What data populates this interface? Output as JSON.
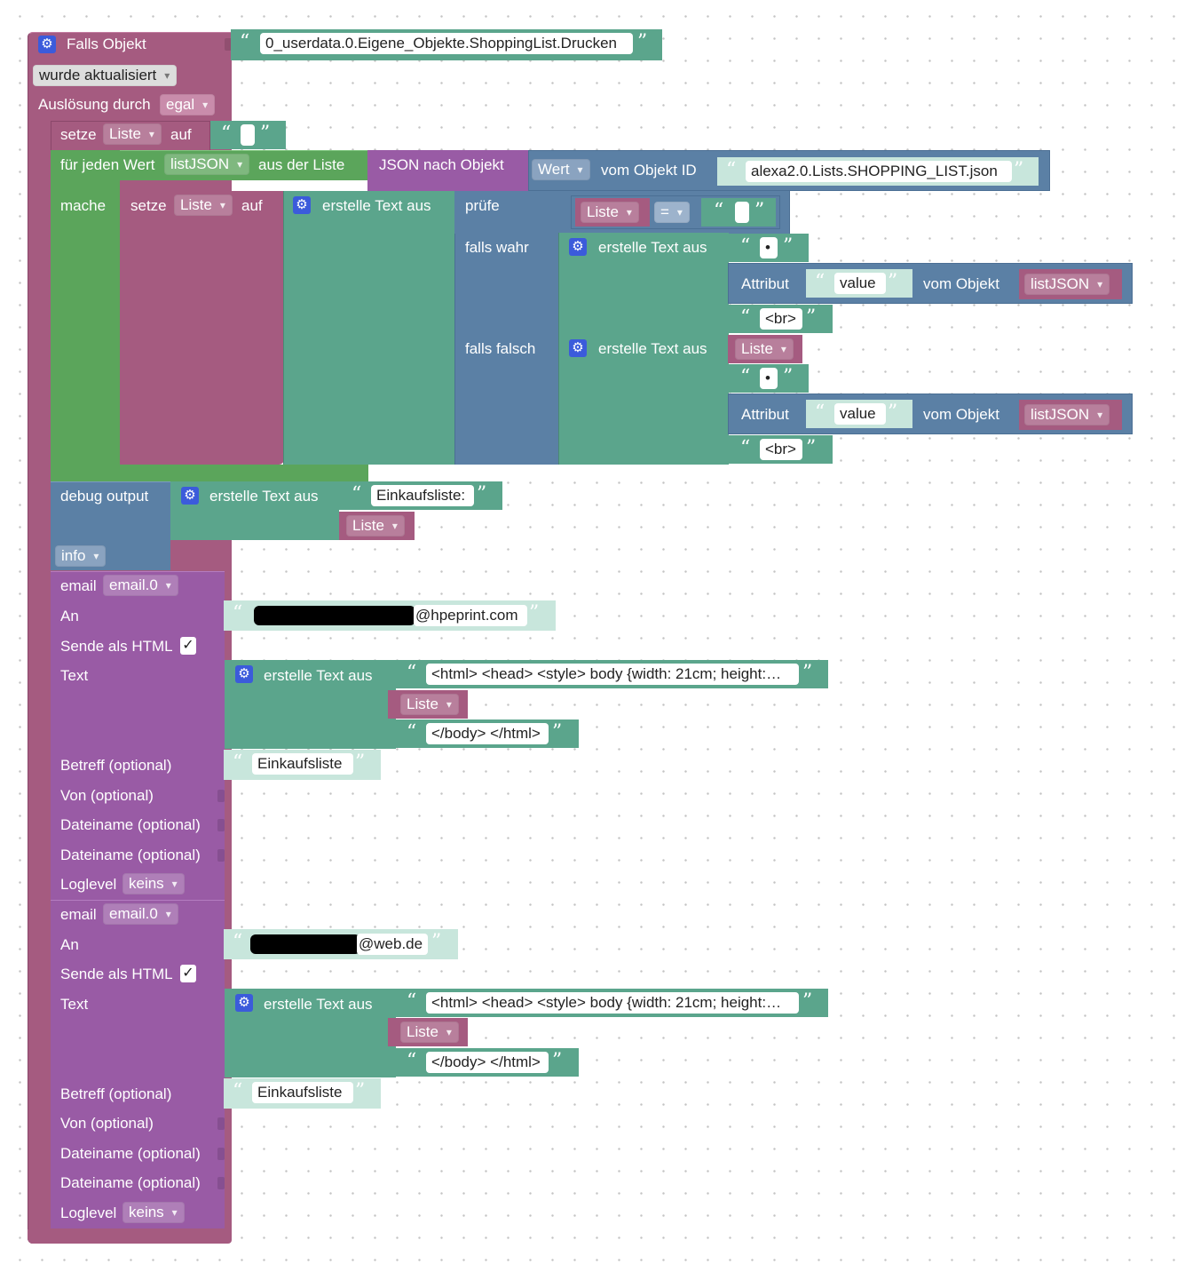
{
  "trigger": {
    "title": "Falls Objekt",
    "object_id": "0_userdata.0.Eigene_Objekte.ShoppingList.Drucken",
    "condition": "wurde aktualisiert",
    "trigger_by_label": "Auslösung durch",
    "trigger_by_value": "egal"
  },
  "common": {
    "setze": "setze",
    "auf": "auf",
    "list_var": "Liste",
    "create_text": "erstelle Text aus",
    "bullet": "•",
    "br": "<br>",
    "attribut": "Attribut",
    "value": "value",
    "vom_objekt": "vom Objekt",
    "listjson": "listJSON"
  },
  "loop": {
    "for_each": "für jeden Wert",
    "var": "listJSON",
    "from_list": "aus der Liste",
    "json_to_obj": "JSON nach Objekt",
    "wert": "Wert",
    "vom_objekt_id": "vom Objekt ID",
    "state_id": "alexa2.0.Lists.SHOPPING_LIST.json",
    "mache": "mache"
  },
  "ternary": {
    "pruefe": "prüfe",
    "op": "=",
    "falls_wahr": "falls wahr",
    "falls_falsch": "falls falsch"
  },
  "debug": {
    "label": "debug output",
    "prefix": "Einkaufsliste:",
    "level": "info"
  },
  "email_labels": {
    "email": "email",
    "instance": "email.0",
    "an": "An",
    "send_html": "Sende als HTML",
    "check": "✓",
    "text": "Text",
    "betreff": "Betreff (optional)",
    "von": "Von (optional)",
    "dateiname": "Dateiname (optional)",
    "loglevel": "Loglevel",
    "loglevel_value": "keins",
    "html_head": "<html> <head> <style> body {width: 21cm; height:…",
    "html_tail": "</body> </html>",
    "subject": "Einkaufsliste"
  },
  "email1": {
    "to_suffix": "@hpeprint.com"
  },
  "email2": {
    "to_suffix": "@web.de"
  }
}
